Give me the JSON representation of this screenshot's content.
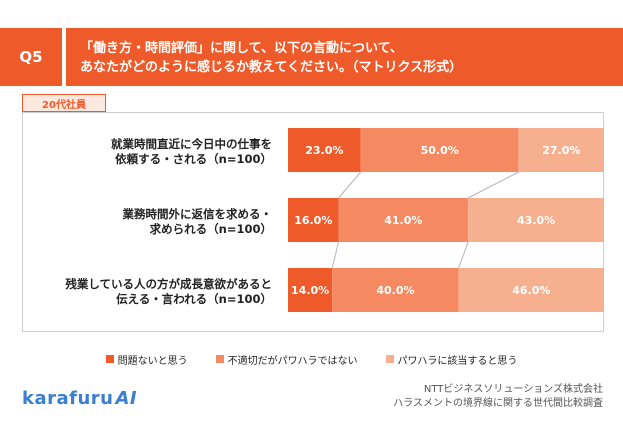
{
  "header": {
    "badge": "Q5",
    "title": "「働き方・時間評価」に関して、以下の言動について、\nあなたがどのように感じるか教えてください。（マトリクス形式）"
  },
  "segment_tag": "20代社員",
  "colors": {
    "accent": "#ef5a2a",
    "series": [
      "#ef5a2a",
      "#f58a62",
      "#f7b08f"
    ]
  },
  "chart_data": {
    "type": "bar",
    "orientation": "horizontal-stacked-100",
    "categories": [
      [
        "就業時間直近に今日中の仕事を",
        "依頼する・される（n=100）"
      ],
      [
        "業務時間外に返信を求める・",
        "求められる（n=100）"
      ],
      [
        "残業している人の方が成長意欲があると",
        "伝える・言われる（n=100）"
      ]
    ],
    "series": [
      {
        "name": "問題ないと思う",
        "values": [
          23.0,
          16.0,
          14.0
        ]
      },
      {
        "name": "不適切だがパワハラではない",
        "values": [
          50.0,
          41.0,
          40.0
        ]
      },
      {
        "name": "パワハラに該当すると思う",
        "values": [
          27.0,
          43.0,
          46.0
        ]
      }
    ],
    "value_labels": [
      [
        "23.0%",
        "50.0%",
        "27.0%"
      ],
      [
        "16.0%",
        "41.0%",
        "43.0%"
      ],
      [
        "14.0%",
        "40.0%",
        "46.0%"
      ]
    ],
    "xlim": [
      0,
      100
    ],
    "legend_position": "bottom"
  },
  "footer": {
    "logo_text": "karafuru",
    "logo_ai": "AI",
    "source_line1": "NTTビジネスソリューションズ株式会社",
    "source_line2": "ハラスメントの境界線に関する世代間比較調査"
  }
}
